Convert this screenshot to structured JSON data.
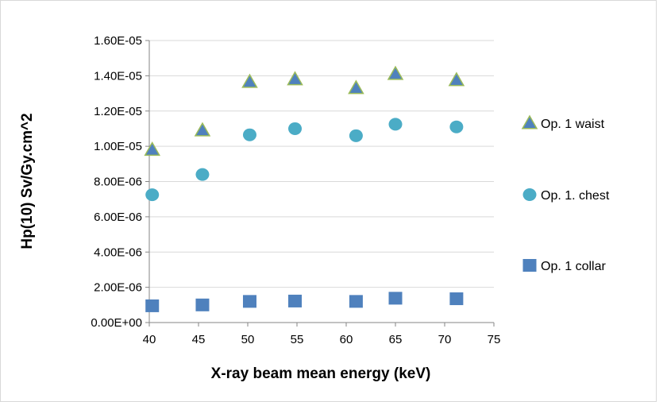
{
  "chart_data": {
    "type": "scatter",
    "title": "",
    "xlabel": "X-ray beam mean energy (keV)",
    "ylabel": "Hp(10) Sv/Gy.cm^2",
    "xlim": [
      40,
      75
    ],
    "ylim": [
      0,
      1.6e-05
    ],
    "x_ticks": [
      40,
      45,
      50,
      55,
      60,
      65,
      70,
      75
    ],
    "x_tick_labels": [
      "40",
      "45",
      "50",
      "55",
      "60",
      "65",
      "70",
      "75"
    ],
    "y_ticks": [
      0,
      2e-06,
      4e-06,
      6e-06,
      8e-06,
      1e-05,
      1.2e-05,
      1.4e-05,
      1.6e-05
    ],
    "y_tick_labels": [
      "0.00E+00",
      "2.00E-06",
      "4.00E-06",
      "6.00E-06",
      "8.00E-06",
      "1.00E-05",
      "1.20E-05",
      "1.40E-05",
      "1.60E-05"
    ],
    "grid": "horizontal",
    "legend_position": "right",
    "series": [
      {
        "name": "Op. 1 waist",
        "marker": "triangle",
        "color": "#4f7f3f",
        "fill": "#4f81bd",
        "edge": "#9bbb59",
        "x": [
          40.3,
          45.4,
          50.2,
          54.8,
          61.0,
          65.0,
          71.2
        ],
        "y": [
          9.8e-06,
          1.09e-05,
          1.365e-05,
          1.38e-05,
          1.33e-05,
          1.41e-05,
          1.375e-05
        ]
      },
      {
        "name": "Op. 1. chest",
        "marker": "circle",
        "color": "#4bacc6",
        "x": [
          40.3,
          45.4,
          50.2,
          54.8,
          61.0,
          65.0,
          71.2
        ],
        "y": [
          7.25e-06,
          8.4e-06,
          1.065e-05,
          1.1e-05,
          1.06e-05,
          1.125e-05,
          1.11e-05
        ]
      },
      {
        "name": "Op. 1 collar",
        "marker": "square",
        "color": "#4f81bd",
        "x": [
          40.3,
          45.4,
          50.2,
          54.8,
          61.0,
          65.0,
          71.2
        ],
        "y": [
          9.5e-07,
          1e-06,
          1.2e-06,
          1.22e-06,
          1.2e-06,
          1.38e-06,
          1.35e-06
        ]
      }
    ]
  }
}
